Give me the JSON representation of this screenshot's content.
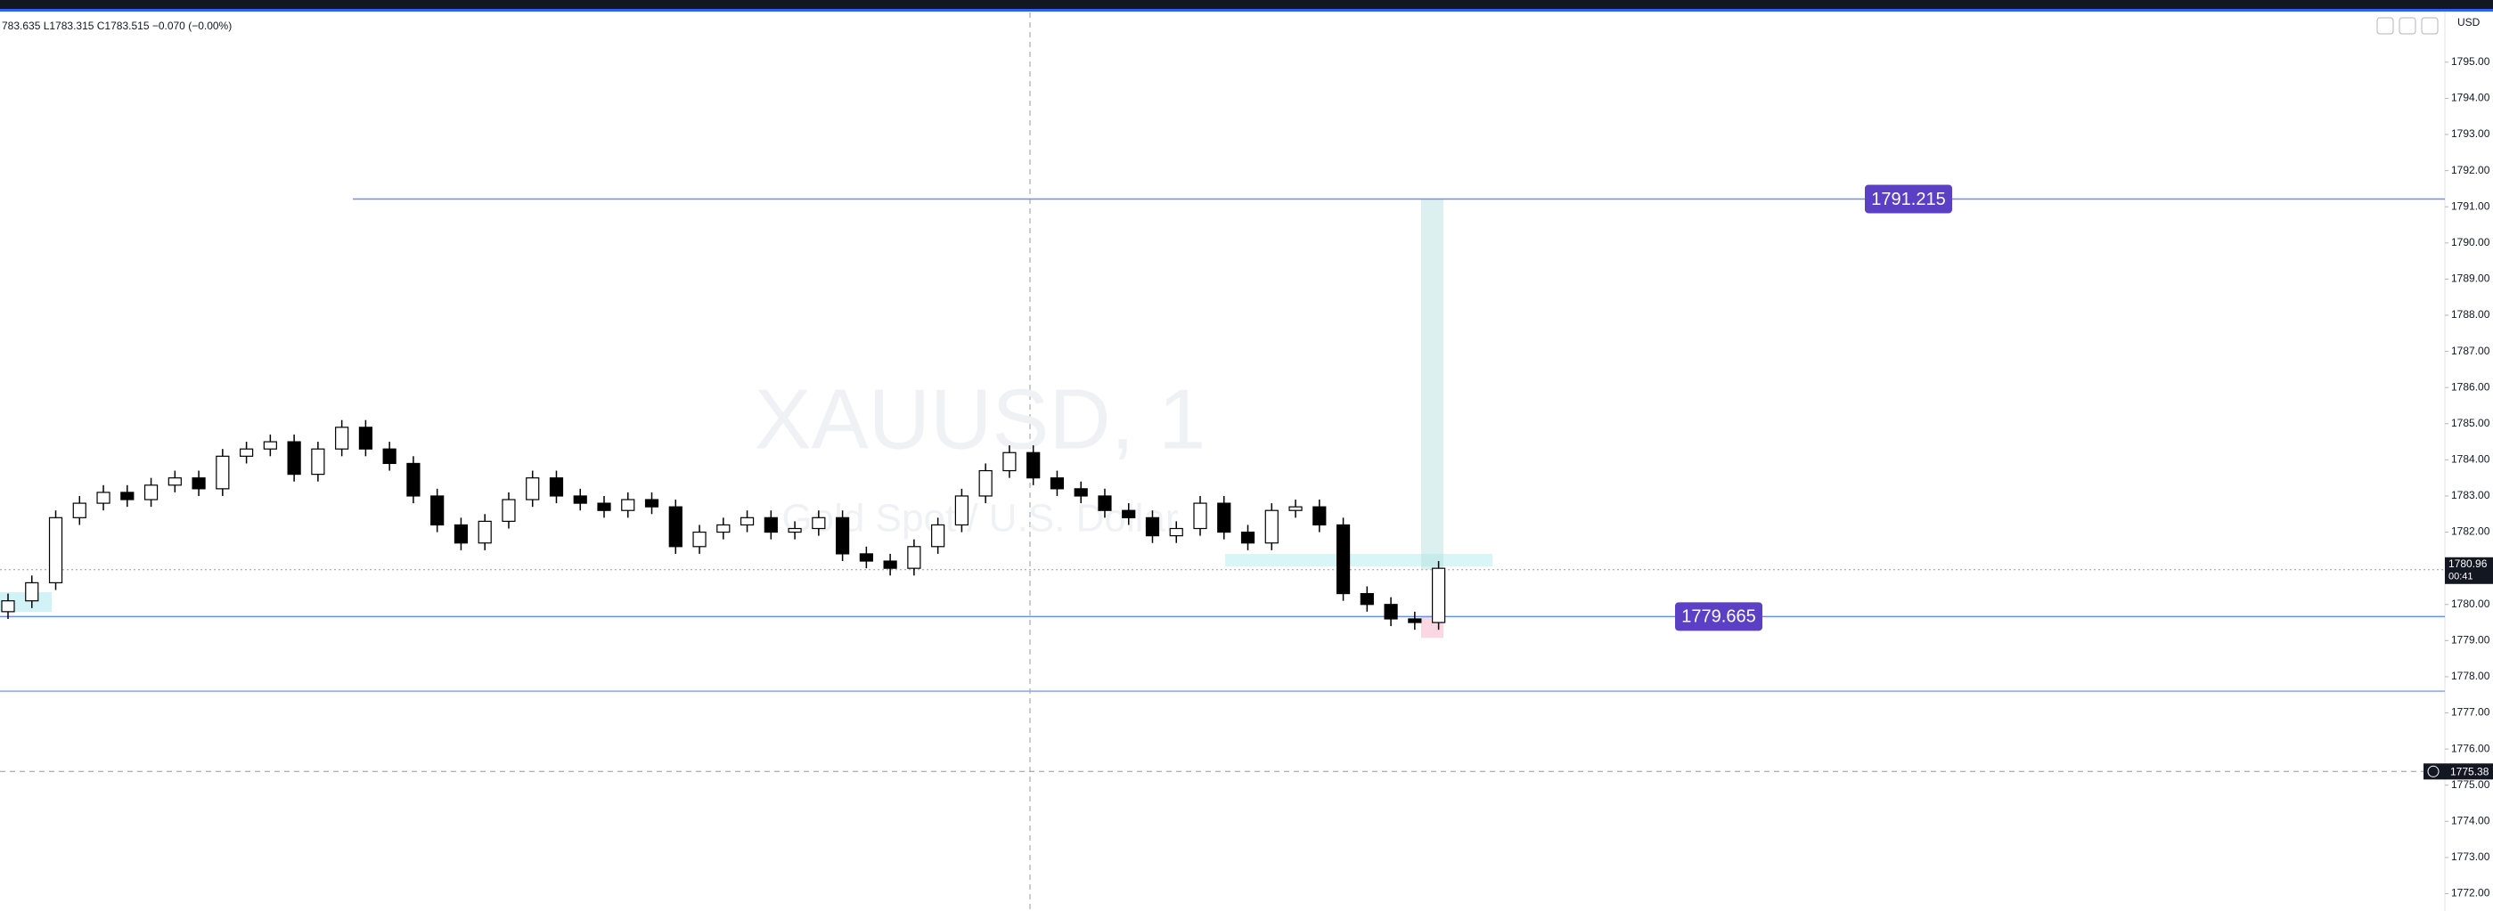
{
  "toolbar": {
    "ohlc_text": "783.635 L1783.315 C1783.515 −0.070 (−0.00%)",
    "currency": "USD"
  },
  "chart_data": {
    "type": "candlestick",
    "watermark": "XAUUSD, 1",
    "watermark_subtitle": "Gold Spot / U.S. Dollar",
    "open": [
      1779.8,
      1780.1,
      1780.6,
      1782.4,
      1782.8,
      1783.1,
      1782.9,
      1783.3,
      1783.5,
      1783.2,
      1784.1,
      1784.3,
      1784.5,
      1783.6,
      1784.3,
      1784.9,
      1784.3,
      1783.9,
      1783.0,
      1782.2,
      1781.7,
      1782.3,
      1782.9,
      1783.5,
      1783.0,
      1782.8,
      1782.6,
      1782.9,
      1782.7,
      1781.6,
      1782.0,
      1782.2,
      1782.4,
      1782.0,
      1782.1,
      1782.4,
      1781.4,
      1781.2,
      1781.0,
      1781.6,
      1782.2,
      1783.0,
      1783.7,
      1784.2,
      1783.5,
      1783.2,
      1783.0,
      1782.6,
      1782.4,
      1781.9,
      1782.1,
      1782.8,
      1782.0,
      1781.7,
      1782.6,
      1782.7,
      1782.2,
      1780.3,
      1780.0,
      1779.6,
      1779.5
    ],
    "high": [
      1780.3,
      1780.8,
      1782.6,
      1783.0,
      1783.3,
      1783.3,
      1783.5,
      1783.7,
      1783.7,
      1784.3,
      1784.5,
      1784.7,
      1784.7,
      1784.5,
      1785.1,
      1785.1,
      1784.5,
      1784.1,
      1783.2,
      1782.4,
      1782.5,
      1783.1,
      1783.7,
      1783.7,
      1783.2,
      1783.0,
      1783.1,
      1783.1,
      1782.9,
      1782.2,
      1782.4,
      1782.6,
      1782.6,
      1782.3,
      1782.6,
      1782.6,
      1781.6,
      1781.4,
      1781.8,
      1782.4,
      1783.2,
      1783.9,
      1784.4,
      1784.4,
      1783.7,
      1783.4,
      1783.2,
      1782.8,
      1782.6,
      1782.3,
      1783.0,
      1783.0,
      1782.2,
      1782.8,
      1782.9,
      1782.9,
      1782.4,
      1780.5,
      1780.2,
      1779.8,
      1781.2
    ],
    "low": [
      1779.6,
      1779.9,
      1780.4,
      1782.2,
      1782.6,
      1782.7,
      1782.7,
      1783.1,
      1783.0,
      1783.0,
      1783.9,
      1784.1,
      1783.4,
      1783.4,
      1784.1,
      1784.1,
      1783.7,
      1782.8,
      1782.0,
      1781.5,
      1781.5,
      1782.1,
      1782.7,
      1782.8,
      1782.6,
      1782.4,
      1782.4,
      1782.5,
      1781.4,
      1781.4,
      1781.8,
      1782.0,
      1781.8,
      1781.8,
      1781.9,
      1781.2,
      1781.0,
      1780.8,
      1780.8,
      1781.4,
      1782.0,
      1782.8,
      1783.5,
      1783.3,
      1783.0,
      1782.8,
      1782.4,
      1782.2,
      1781.7,
      1781.7,
      1781.9,
      1781.8,
      1781.5,
      1781.5,
      1782.4,
      1782.0,
      1780.1,
      1779.8,
      1779.4,
      1779.3,
      1779.3
    ],
    "close": [
      1780.1,
      1780.6,
      1782.4,
      1782.8,
      1783.1,
      1782.9,
      1783.3,
      1783.5,
      1783.2,
      1784.1,
      1784.3,
      1784.5,
      1783.6,
      1784.3,
      1784.9,
      1784.3,
      1783.9,
      1783.0,
      1782.2,
      1781.7,
      1782.3,
      1782.9,
      1783.5,
      1783.0,
      1782.8,
      1782.6,
      1782.9,
      1782.7,
      1781.6,
      1782.0,
      1782.2,
      1782.4,
      1782.0,
      1782.1,
      1782.4,
      1781.4,
      1781.2,
      1781.0,
      1781.6,
      1782.2,
      1783.0,
      1783.7,
      1784.2,
      1783.5,
      1783.2,
      1783.0,
      1782.6,
      1782.4,
      1781.9,
      1782.1,
      1782.8,
      1782.0,
      1781.7,
      1782.6,
      1782.7,
      1782.2,
      1780.3,
      1780.0,
      1779.6,
      1779.5,
      1781.0
    ],
    "up_color": "#ffffff",
    "down_color": "#000000",
    "ylim": [
      1771.52,
      1796.72
    ],
    "yticks": [
      {
        "value": 1772,
        "label": "1772.00"
      },
      {
        "value": 1773,
        "label": "1773.00"
      },
      {
        "value": 1774,
        "label": "1774.00"
      },
      {
        "value": 1775,
        "label": "1775.00"
      },
      {
        "value": 1776,
        "label": "1776.00"
      },
      {
        "value": 1777,
        "label": "1777.00"
      },
      {
        "value": 1778,
        "label": "1778.00"
      },
      {
        "value": 1779,
        "label": "1779.00"
      },
      {
        "value": 1780,
        "label": "1780.00"
      },
      {
        "value": 1781,
        "label": "1781.00"
      },
      {
        "value": 1782,
        "label": "1782.00"
      },
      {
        "value": 1783,
        "label": "1783.00"
      },
      {
        "value": 1784,
        "label": "1784.00"
      },
      {
        "value": 1785,
        "label": "1785.00"
      },
      {
        "value": 1786,
        "label": "1786.00"
      },
      {
        "value": 1787,
        "label": "1787.00"
      },
      {
        "value": 1788,
        "label": "1788.00"
      },
      {
        "value": 1789,
        "label": "1789.00"
      },
      {
        "value": 1790,
        "label": "1790.00"
      },
      {
        "value": 1791,
        "label": "1791.00"
      },
      {
        "value": 1792,
        "label": "1792.00"
      },
      {
        "value": 1793,
        "label": "1793.00"
      },
      {
        "value": 1794,
        "label": "1794.00"
      },
      {
        "value": 1795,
        "label": "1795.00"
      }
    ],
    "levels": [
      1791.215,
      1779.665
    ],
    "level_color": "#5b3fc4",
    "extra_line": 1777.6,
    "last_price": 1780.96,
    "countdown": "00:41",
    "alert_price": 1775.38
  }
}
